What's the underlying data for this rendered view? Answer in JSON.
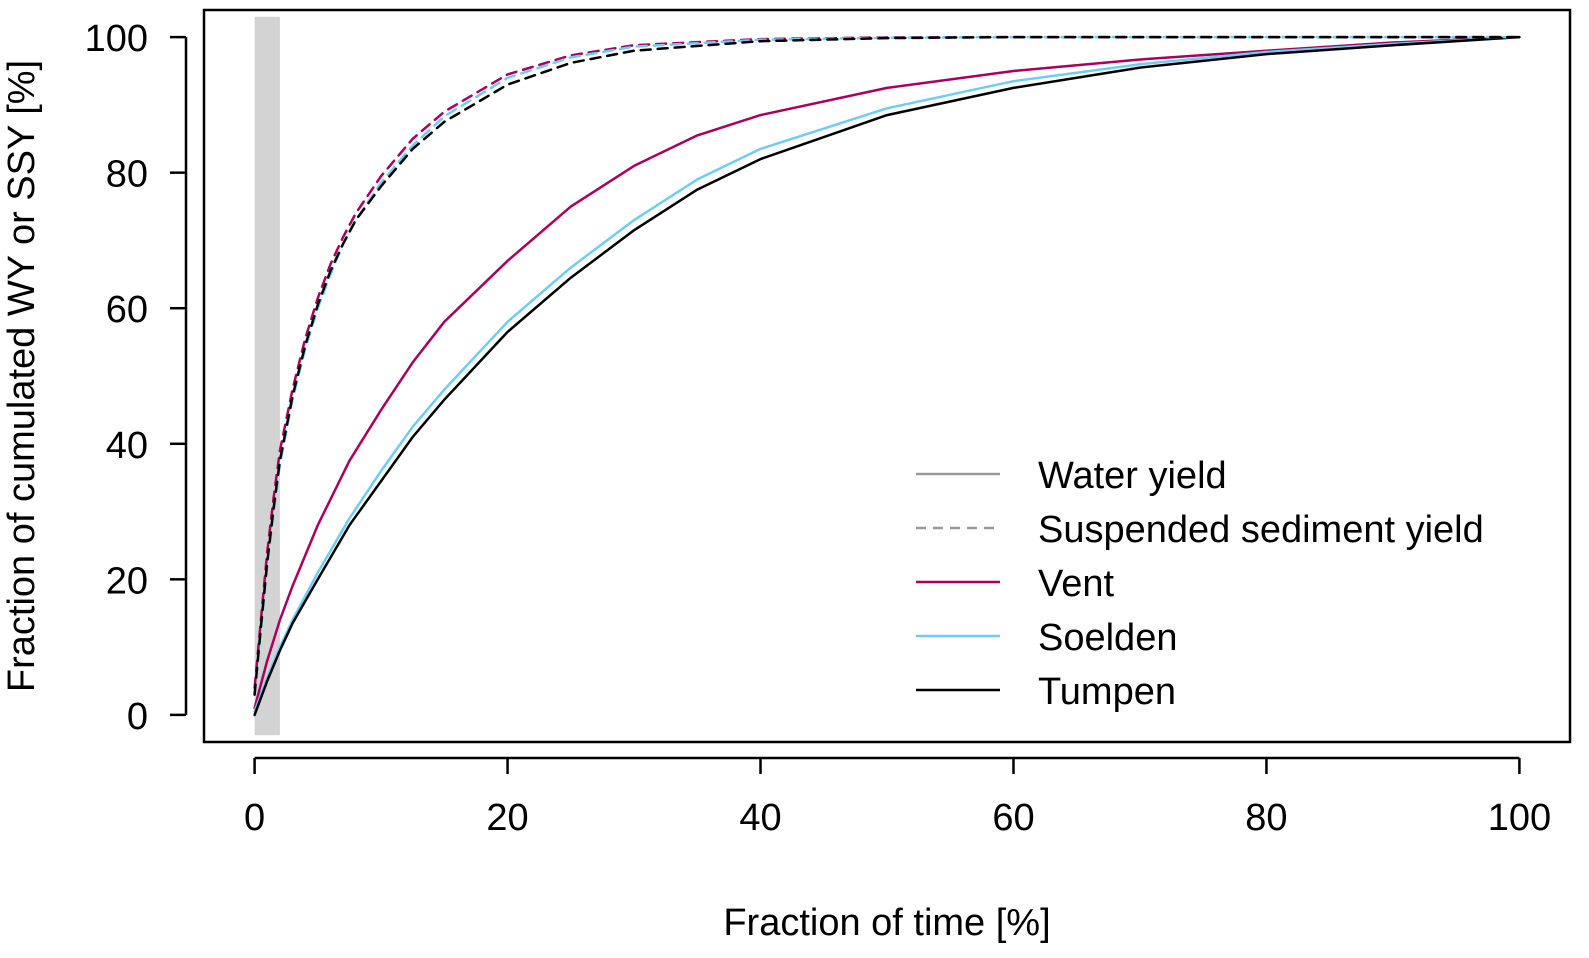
{
  "chart_data": {
    "type": "line",
    "title": "",
    "xlabel": "Fraction of time [%]",
    "ylabel": "Fraction of cumulated WY or SSY [%]",
    "xlim": [
      -4,
      104
    ],
    "ylim": [
      -4,
      104
    ],
    "x_ticks": [
      0,
      20,
      40,
      60,
      80,
      100
    ],
    "y_ticks": [
      0,
      20,
      40,
      60,
      80,
      100
    ],
    "x_tick_labels": [
      "0",
      "20",
      "40",
      "60",
      "80",
      "100"
    ],
    "y_tick_labels": [
      "0",
      "20",
      "40",
      "60",
      "80",
      "100"
    ],
    "grid": false,
    "legend_position": "bottom-right",
    "shaded_band": {
      "x_from": 0,
      "x_to": 2,
      "color": "#d3d3d3"
    },
    "legend": [
      {
        "label": "Water yield",
        "color": "#999999",
        "dash": "solid"
      },
      {
        "label": "Suspended sediment yield",
        "color": "#999999",
        "dash": "dashed"
      },
      {
        "label": "Vent",
        "color": "#a8005e",
        "dash": "solid"
      },
      {
        "label": "Soelden",
        "color": "#6ecdf5",
        "dash": "solid"
      },
      {
        "label": "Tumpen",
        "color": "#000000",
        "dash": "solid"
      }
    ],
    "series": [
      {
        "name": "Vent",
        "variable": "Water yield",
        "color": "#a8005e",
        "dash": "solid",
        "x": [
          0,
          1,
          2,
          3,
          5,
          7.5,
          10,
          12.5,
          15,
          20,
          25,
          30,
          35,
          40,
          50,
          60,
          70,
          80,
          90,
          100
        ],
        "y": [
          1,
          8,
          14,
          19,
          28,
          37.5,
          45,
          52,
          58,
          67,
          75,
          81,
          85.5,
          88.5,
          92.5,
          95,
          96.7,
          98,
          99.2,
          100
        ]
      },
      {
        "name": "Soelden",
        "variable": "Water yield",
        "color": "#6ecdf5",
        "dash": "solid",
        "x": [
          0,
          1,
          2,
          3,
          5,
          7.5,
          10,
          12.5,
          15,
          20,
          25,
          30,
          35,
          40,
          50,
          60,
          70,
          80,
          90,
          100
        ],
        "y": [
          0.5,
          5.5,
          10,
          14,
          21,
          29,
          36,
          42.5,
          48,
          58,
          66,
          73,
          79,
          83.5,
          89.5,
          93.5,
          96,
          97.8,
          99,
          100
        ]
      },
      {
        "name": "Tumpen",
        "variable": "Water yield",
        "color": "#000000",
        "dash": "solid",
        "x": [
          0,
          1,
          2,
          3,
          5,
          7.5,
          10,
          12.5,
          15,
          20,
          25,
          30,
          35,
          40,
          50,
          60,
          70,
          80,
          90,
          100
        ],
        "y": [
          0,
          5,
          9.5,
          13.5,
          20,
          28,
          34.5,
          41,
          46.5,
          56.5,
          64.5,
          71.5,
          77.5,
          82,
          88.5,
          92.5,
          95.5,
          97.5,
          98.8,
          100
        ]
      },
      {
        "name": "Vent",
        "variable": "Suspended sediment yield",
        "color": "#a8005e",
        "dash": "dashed",
        "x": [
          0,
          0.5,
          1,
          1.5,
          2,
          3,
          4,
          5,
          6,
          7,
          8,
          10,
          12.5,
          15,
          20,
          25,
          30,
          40,
          50,
          60,
          80,
          100
        ],
        "y": [
          4,
          14,
          24,
          32,
          39,
          48,
          55.5,
          61.5,
          66.5,
          70.5,
          74,
          79.5,
          85,
          89,
          94.5,
          97.3,
          98.8,
          99.7,
          99.95,
          100,
          100,
          100
        ]
      },
      {
        "name": "Soelden",
        "variable": "Suspended sediment yield",
        "color": "#6ecdf5",
        "dash": "dashed",
        "x": [
          0,
          0.5,
          1,
          1.5,
          2,
          3,
          4,
          5,
          6,
          7,
          8,
          10,
          12.5,
          15,
          20,
          25,
          30,
          40,
          50,
          60,
          80,
          100
        ],
        "y": [
          3,
          12.5,
          22,
          30,
          37,
          46.5,
          54,
          60,
          65,
          69.5,
          73,
          78.5,
          84,
          88.3,
          94,
          97,
          98.6,
          99.6,
          99.9,
          100,
          100,
          100
        ]
      },
      {
        "name": "Tumpen",
        "variable": "Suspended sediment yield",
        "color": "#000000",
        "dash": "dashed",
        "x": [
          0,
          0.5,
          1,
          1.5,
          2,
          3,
          4,
          5,
          6,
          7,
          8,
          10,
          12.5,
          15,
          20,
          25,
          30,
          40,
          50,
          60,
          80,
          100
        ],
        "y": [
          3,
          13,
          22.5,
          30.5,
          37.5,
          47,
          54.5,
          60.5,
          65.5,
          69.5,
          73,
          78,
          83.5,
          87.5,
          93,
          96.2,
          98,
          99.4,
          99.85,
          100,
          100,
          100
        ]
      }
    ]
  }
}
